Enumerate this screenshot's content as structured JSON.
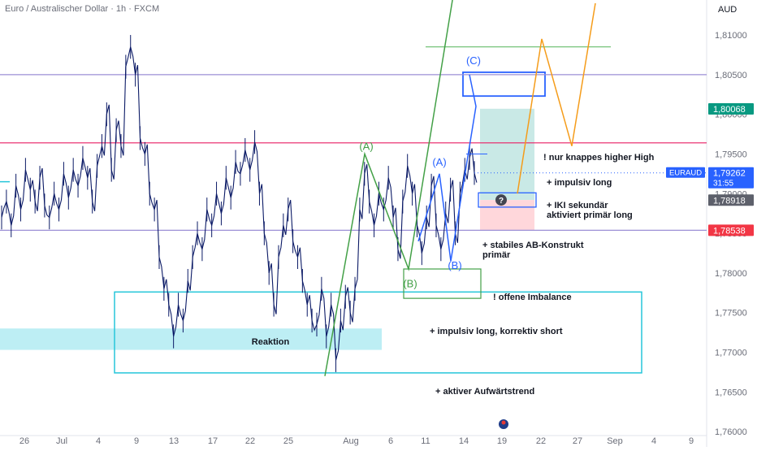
{
  "header": {
    "title": "Euro / Australischer Dollar · 1h · FXCM",
    "currency": "AUD"
  },
  "chart_data": {
    "type": "line",
    "price_axis": {
      "ticks": [
        "1,81000",
        "1,80500",
        "1,80000",
        "1,79500",
        "1,79000",
        "1,78500",
        "1,78000",
        "1,77500",
        "1,77000",
        "1,76500",
        "1,76000"
      ],
      "ylim": [
        1.7595,
        1.814
      ]
    },
    "time_axis": {
      "ticks": [
        "26",
        "Jul",
        "4",
        "9",
        "13",
        "17",
        "22",
        "25",
        "Aug",
        "6",
        "11",
        "14",
        "19",
        "22",
        "27",
        "Sep",
        "4",
        "9"
      ]
    },
    "series": [
      {
        "values": [
          1.787,
          1.789,
          1.786,
          1.791,
          1.788,
          1.793,
          1.7905,
          1.789,
          1.792,
          1.7885,
          1.787,
          1.79,
          1.788,
          1.7925,
          1.7895,
          1.793,
          1.791,
          1.7945,
          1.792,
          1.789,
          1.7935,
          1.796,
          1.8,
          1.793,
          1.798,
          1.796,
          1.806,
          1.8085,
          1.805,
          1.797,
          1.795,
          1.79,
          1.788,
          1.782,
          1.778,
          1.776,
          1.772,
          1.776,
          1.774,
          1.779,
          1.782,
          1.785,
          1.783,
          1.788,
          1.786,
          1.79,
          1.7875,
          1.792,
          1.7895,
          1.794,
          1.7925,
          1.7955,
          1.793,
          1.7965,
          1.79,
          1.785,
          1.78,
          1.776,
          1.782,
          1.786,
          1.788,
          1.784,
          1.782,
          1.779,
          1.776,
          1.774,
          1.7735,
          1.778,
          1.772,
          1.776,
          1.769,
          1.774,
          1.777,
          1.775,
          1.778,
          1.788,
          1.7925,
          1.789,
          1.786,
          1.79,
          1.788,
          1.792,
          1.787,
          1.783,
          1.789,
          1.7935,
          1.79,
          1.786,
          1.7825,
          1.787,
          1.791,
          1.786,
          1.783,
          1.7875,
          1.7905,
          1.785,
          1.79,
          1.793,
          1.7945,
          1.7926
        ],
        "color": "#0b1a66"
      }
    ],
    "horizontal_lines": [
      {
        "value": 1.8085,
        "color": "#66bb6a"
      },
      {
        "value": 1.805,
        "color": "#9c8fd6"
      },
      {
        "value": 1.7964,
        "color": "#e91e63"
      },
      {
        "value": 1.78538,
        "color": "#9c8fd6"
      }
    ],
    "price_labels": [
      {
        "text": "1,80068",
        "color": "#089981"
      },
      {
        "text": "1,79262",
        "text2": "31:55",
        "color": "#2962ff"
      },
      {
        "text": "1,78918",
        "color": "#5d606b"
      },
      {
        "text": "1,78538",
        "color": "#f23645"
      }
    ],
    "symbol": "EURAUD",
    "wave_labels": [
      "(A)",
      "(B)",
      "(A)",
      "(B)",
      "(C)"
    ],
    "zone_labels": [
      "Reaktion"
    ],
    "annotations": [
      "! nur knappes higher High",
      "+ impulsiv long",
      "+ IKI sekundär\n  aktiviert primär long",
      "+ stabiles AB-Konstrukt\n  primär",
      "! offene Imbalance",
      "+ impulsiv long, korrektiv short",
      "+ aktiver Aufwärtstrend"
    ]
  }
}
